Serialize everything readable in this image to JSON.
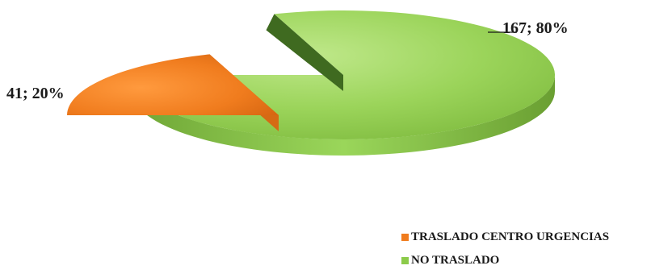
{
  "chart_data": {
    "type": "pie",
    "style": "3d-exploded",
    "categories": [
      "TRASLADO CENTRO URGENCIAS",
      "NO TRASLADO"
    ],
    "values": [
      41,
      167
    ],
    "percentages": [
      20,
      80
    ],
    "data_labels": [
      "41; 20%",
      "167; 80%"
    ],
    "colors": [
      "#f07c1e",
      "#8ccb4a"
    ],
    "legend_position": "bottom-right"
  }
}
